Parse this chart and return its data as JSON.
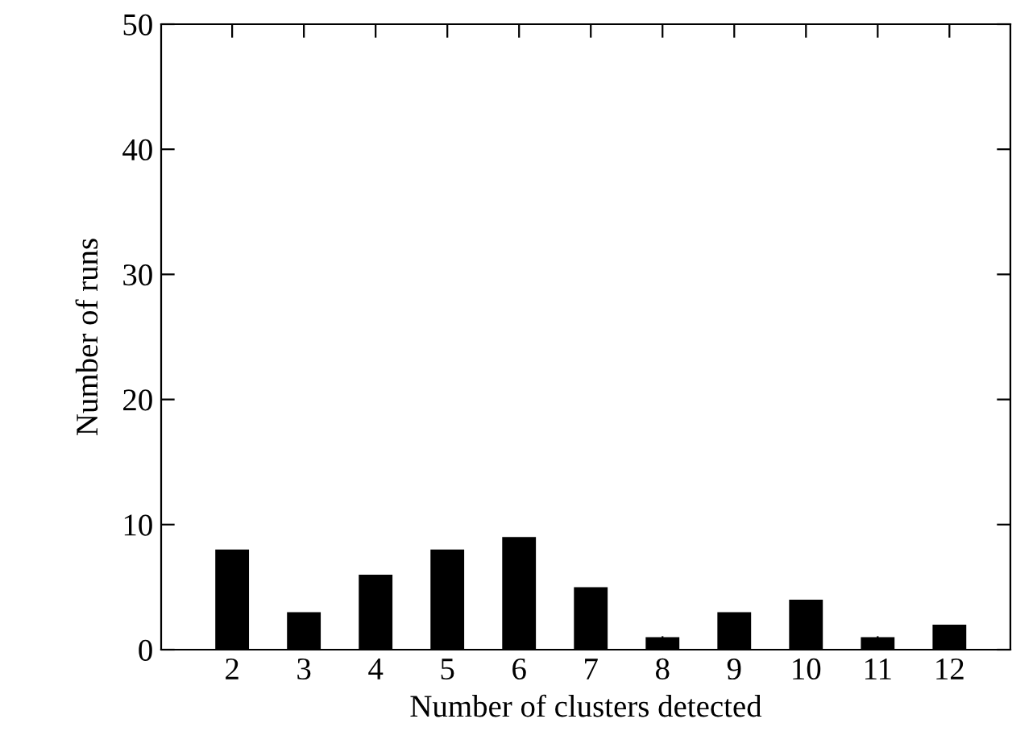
{
  "chart_data": {
    "type": "bar",
    "xlabel": "Number of clusters detected",
    "ylabel": "Number of runs",
    "categories": [
      "2",
      "3",
      "4",
      "5",
      "6",
      "7",
      "8",
      "9",
      "10",
      "11",
      "12"
    ],
    "values": [
      8,
      3,
      6,
      8,
      9,
      5,
      1,
      3,
      4,
      1,
      2
    ],
    "color": "#000000",
    "ylim": [
      0,
      50
    ],
    "yticks": [
      0,
      10,
      20,
      30,
      40,
      50
    ],
    "grid": false,
    "legend": false
  }
}
